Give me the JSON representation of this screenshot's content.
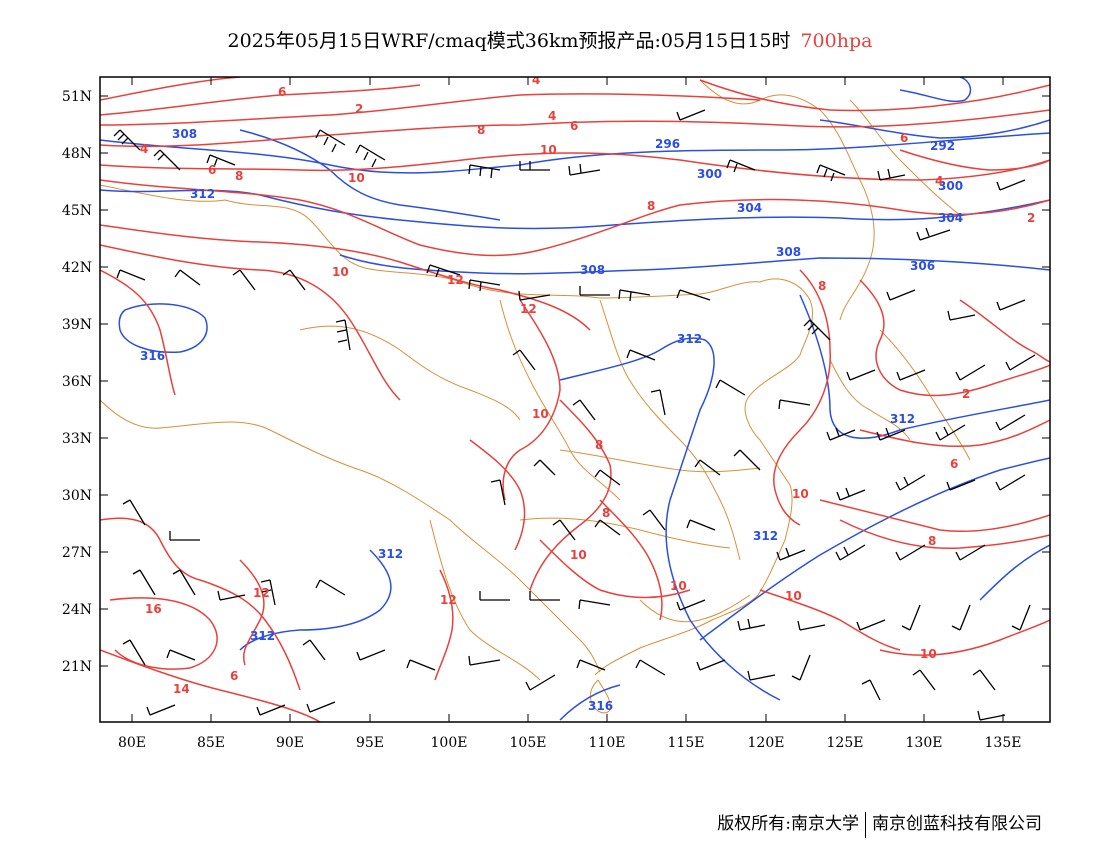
{
  "title": {
    "main": "2025年05月15日WRF/cmaq模式36km预报产品:05月15日15时",
    "level": "700hpa"
  },
  "axes": {
    "x_ticks": [
      "80E",
      "85E",
      "90E",
      "95E",
      "100E",
      "105E",
      "110E",
      "115E",
      "120E",
      "125E",
      "130E",
      "135E"
    ],
    "y_ticks": [
      "51N",
      "48N",
      "45N",
      "42N",
      "39N",
      "36N",
      "33N",
      "30N",
      "27N",
      "24N",
      "21N"
    ]
  },
  "colors": {
    "temperature_contour": "#e8413c",
    "height_contour": "#2b4fe0",
    "boundaries": "#d9903a",
    "wind_barbs": "#000000"
  },
  "height_labels": [
    "296",
    "300",
    "308",
    "304",
    "300",
    "292",
    "304",
    "308",
    "308",
    "312",
    "306",
    "312",
    "312",
    "312",
    "316",
    "312",
    "316",
    "312"
  ],
  "temperature_labels": [
    "4",
    "6",
    "2",
    "4",
    "8",
    "6",
    "4",
    "6",
    "8",
    "10",
    "6",
    "8",
    "8",
    "10",
    "12",
    "12",
    "10",
    "8",
    "10",
    "10",
    "10",
    "12",
    "12",
    "16",
    "14",
    "10",
    "8",
    "6",
    "2",
    "2",
    "4",
    "6",
    "8",
    "10",
    "10"
  ],
  "footer": {
    "copyright": "版权所有:南京大学",
    "company": "南京创蓝科技有限公司"
  }
}
